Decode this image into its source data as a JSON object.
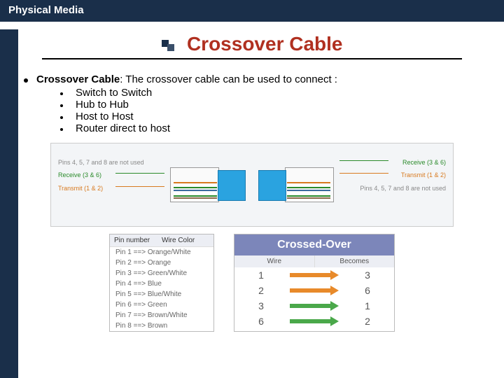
{
  "header": "Physical Media",
  "title": "Crossover Cable",
  "intro": {
    "term": "Crossover Cable",
    "text": ": The crossover cable can be used to connect :"
  },
  "bullets": [
    "Switch to Switch",
    "Hub to Hub",
    "Host to Host",
    "Router direct to host"
  ],
  "diagram": {
    "wires": [
      "#d87a20",
      "#fff",
      "#2a8a2a",
      "#3a6aa0",
      "#fff",
      "#2a8a2a",
      "#8a6a4a",
      "#fff"
    ],
    "left_labels": {
      "gray": "Pins 4, 5, 7 and 8\nare not used",
      "green": "Receive (3 & 6)",
      "orange": "Transmit (1 & 2)"
    },
    "right_labels": {
      "green": "Receive (3 & 6)",
      "orange": "Transmit (1 & 2)",
      "gray": "Pins 4, 5, 7 and 8\nare not used"
    }
  },
  "pin_table": {
    "header1": "Pin number",
    "header2": "Wire Color",
    "rows": [
      "Pin 1 ==> Orange/White",
      "Pin 2 ==> Orange",
      "Pin 3 ==> Green/White",
      "Pin 4 ==> Blue",
      "Pin 5 ==> Blue/White",
      "Pin 6 ==> Green",
      "Pin 7 ==> Brown/White",
      "Pin 8 ==> Brown"
    ]
  },
  "cross_table": {
    "title": "Crossed-Over",
    "col1": "Wire",
    "col2": "Becomes",
    "rows": [
      {
        "wire": "1",
        "becomes": "3",
        "color": "#e88a2a"
      },
      {
        "wire": "2",
        "becomes": "6",
        "color": "#e88a2a"
      },
      {
        "wire": "3",
        "becomes": "1",
        "color": "#4aa84a"
      },
      {
        "wire": "6",
        "becomes": "2",
        "color": "#4aa84a"
      }
    ]
  }
}
